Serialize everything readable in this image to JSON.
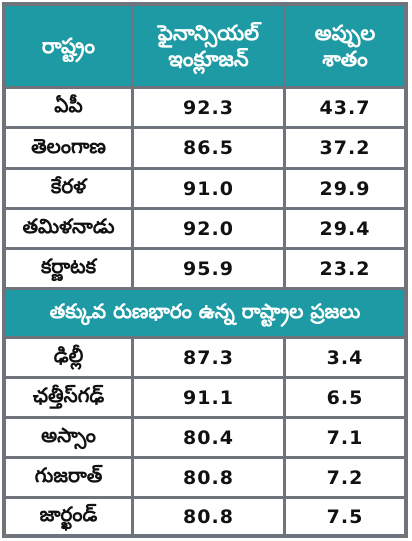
{
  "table": {
    "header": {
      "col1": "రాష్ట్రం",
      "col2_line1": "ఫైనాన్సియల్",
      "col2_line2": "ఇంక్లూజన్",
      "col3_line1": "అప్పుల",
      "col3_line2": "శాతం"
    },
    "rows_top": [
      {
        "state": "ఏపీ",
        "inclusion": "92.3",
        "debt": "43.7"
      },
      {
        "state": "తెలంగాణ",
        "inclusion": "86.5",
        "debt": "37.2"
      },
      {
        "state": "కేరళ",
        "inclusion": "91.0",
        "debt": "29.9"
      },
      {
        "state": "తమిళనాడు",
        "inclusion": "92.0",
        "debt": "29.4"
      },
      {
        "state": "కర్ణాటక",
        "inclusion": "95.9",
        "debt": "23.2"
      }
    ],
    "section_title": "తక్కువ రుణభారం ఉన్న రాష్ట్రాల ప్రజలు",
    "rows_bottom": [
      {
        "state": "ఢిల్లీ",
        "inclusion": "87.3",
        "debt": "3.4"
      },
      {
        "state": "ఛత్తీస్‌గఢ్",
        "inclusion": "91.1",
        "debt": "6.5"
      },
      {
        "state": "అస్సాం",
        "inclusion": "80.4",
        "debt": "7.1"
      },
      {
        "state": "గుజరాత్",
        "inclusion": "80.8",
        "debt": "7.2"
      },
      {
        "state": "జార్ఖండ్",
        "inclusion": "80.8",
        "debt": "7.5"
      }
    ]
  }
}
